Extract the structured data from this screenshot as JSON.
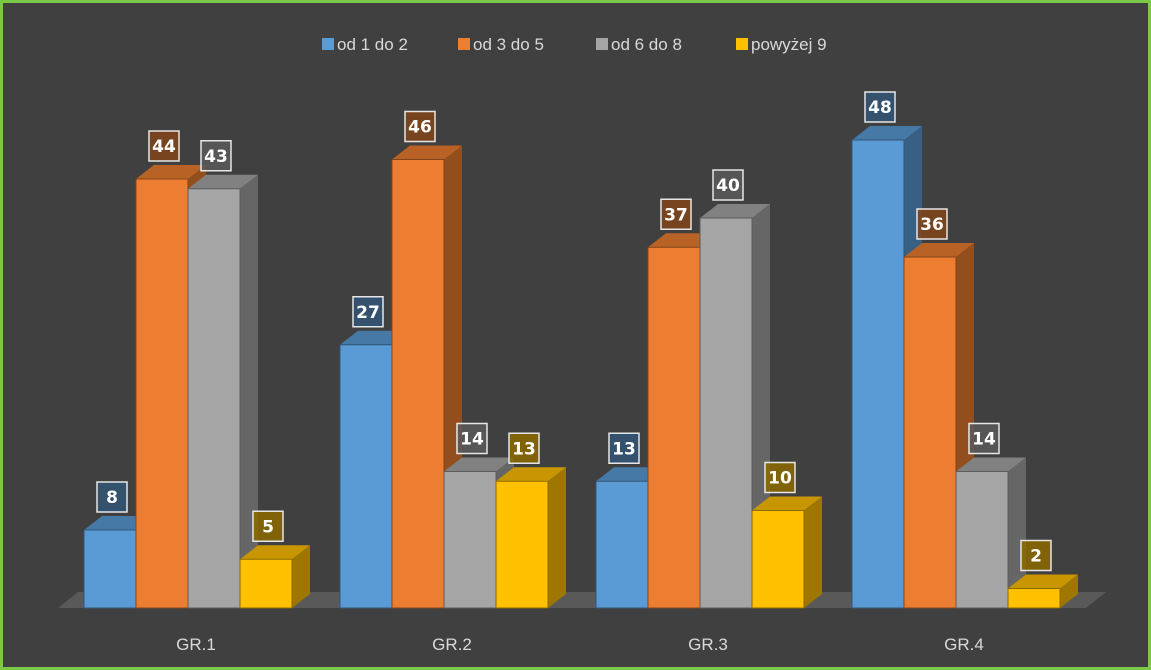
{
  "chart_data": {
    "type": "bar",
    "categories": [
      "GR.1",
      "GR.2",
      "GR.3",
      "GR.4"
    ],
    "series": [
      {
        "name": "od 1 do 2",
        "values": [
          8,
          27,
          13,
          48
        ],
        "color": "#5B9BD5"
      },
      {
        "name": "od 3 do 5",
        "values": [
          44,
          46,
          37,
          36
        ],
        "color": "#ED7D31"
      },
      {
        "name": "od 6 do 8",
        "values": [
          43,
          14,
          40,
          14
        ],
        "color": "#A5A5A5"
      },
      {
        "name": "powyżej 9",
        "values": [
          5,
          13,
          10,
          2
        ],
        "color": "#FFC000"
      }
    ],
    "ylim": [
      0,
      48
    ],
    "legend": "top-center",
    "grid": false,
    "data_labels": true,
    "style": "3d-clustered-column",
    "colors": {
      "background": "#404040",
      "border": "#7CC94A",
      "text": "#D9D9D9",
      "floor": "#595959"
    }
  }
}
